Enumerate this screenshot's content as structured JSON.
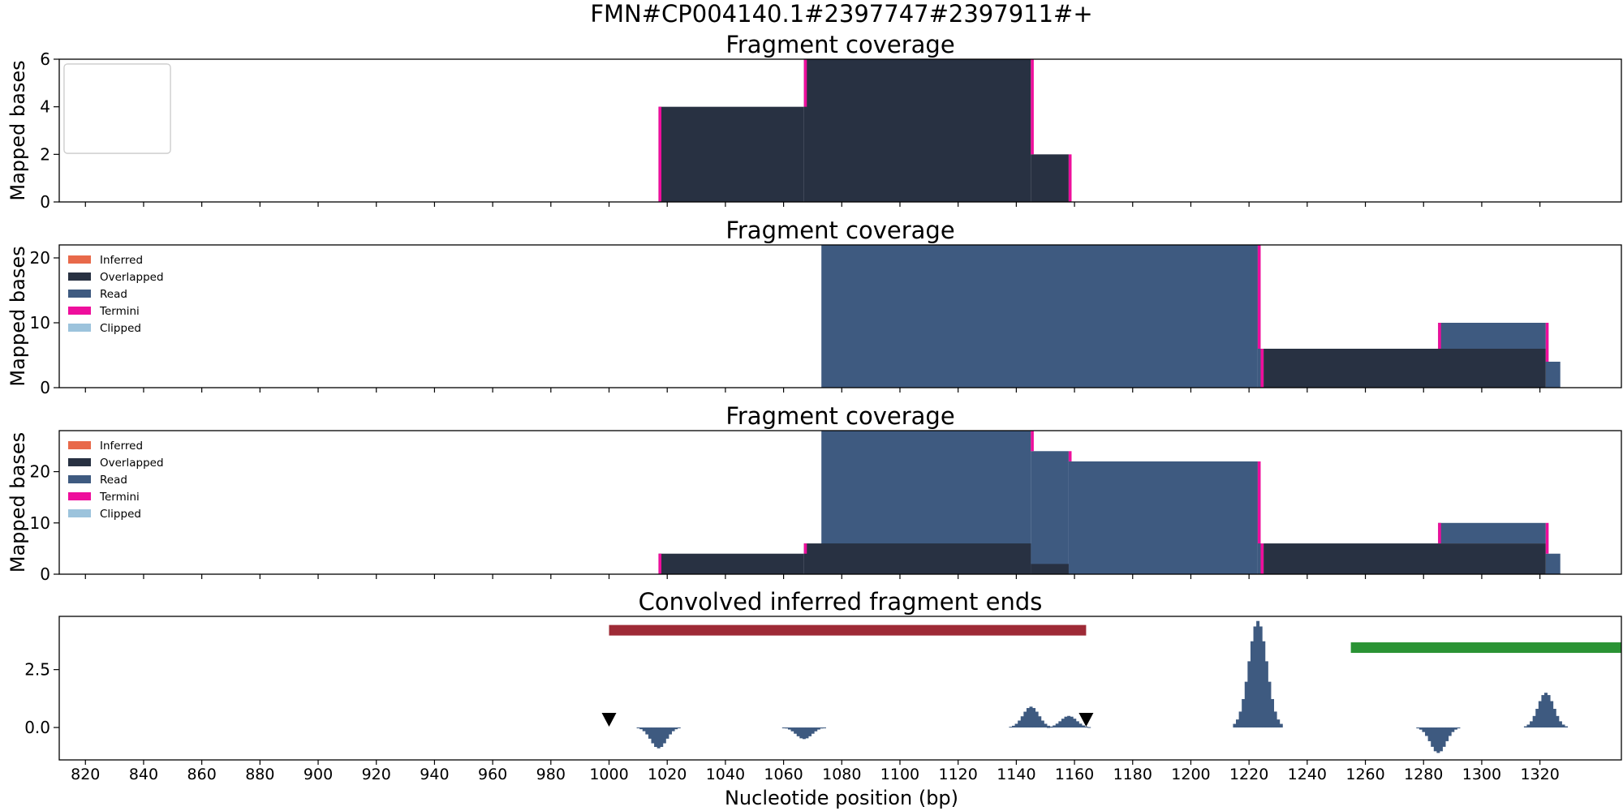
{
  "figure": {
    "suptitle": "FMN#CP004140.1#2397747#2397911#+",
    "xlabel": "Nucleotide position (bp)"
  },
  "colors": {
    "Inferred": "#e8694a",
    "Overlapped": "#283142",
    "Read": "#3e5a80",
    "Termini": "#ee0e9c",
    "Clipped": "#9cc3dc",
    "red_bar": "#9e2a36",
    "green_bar": "#2a9334",
    "marker": "#000000"
  },
  "legend": {
    "entries": [
      "Inferred",
      "Overlapped",
      "Read",
      "Termini",
      "Clipped"
    ]
  },
  "chart_data": [
    {
      "type": "area",
      "title": "Fragment coverage",
      "ylabel": "Mapped bases",
      "xlim": [
        811,
        1348
      ],
      "ylim": [
        0,
        6
      ],
      "yticks": [
        0,
        2,
        4,
        6
      ],
      "legend_position": "top-left",
      "series": [
        {
          "name": "Overlapped",
          "color_key": "Overlapped",
          "steps": [
            {
              "x0": 1017,
              "x1": 1067,
              "y0": 0,
              "y1": 4
            },
            {
              "x0": 1067,
              "x1": 1145,
              "y0": 0,
              "y1": 6
            },
            {
              "x0": 1145,
              "x1": 1158,
              "y0": 0,
              "y1": 2
            }
          ]
        },
        {
          "name": "Termini",
          "color_key": "Termini",
          "steps": [
            {
              "x0": 1017,
              "x1": 1018,
              "y0": 0,
              "y1": 4
            },
            {
              "x0": 1067,
              "x1": 1068,
              "y0": 4,
              "y1": 6
            },
            {
              "x0": 1145,
              "x1": 1146,
              "y0": 2,
              "y1": 6
            },
            {
              "x0": 1158,
              "x1": 1159,
              "y0": 0,
              "y1": 2
            }
          ]
        }
      ]
    },
    {
      "type": "area",
      "title": "Fragment coverage",
      "ylabel": "Mapped bases",
      "xlim": [
        811,
        1348
      ],
      "ylim": [
        0,
        22
      ],
      "yticks": [
        0,
        10,
        20
      ],
      "legend_position": "top-left",
      "series": [
        {
          "name": "Read",
          "color_key": "Read",
          "steps": [
            {
              "x0": 1073,
              "x1": 1223,
              "y0": 0,
              "y1": 22
            },
            {
              "x0": 1223,
              "x1": 1224,
              "y0": 0,
              "y1": 21
            },
            {
              "x0": 1285,
              "x1": 1322,
              "y0": 6,
              "y1": 10
            },
            {
              "x0": 1322,
              "x1": 1327,
              "y0": 0,
              "y1": 4
            }
          ]
        },
        {
          "name": "Overlapped",
          "color_key": "Overlapped",
          "steps": [
            {
              "x0": 1225,
              "x1": 1322,
              "y0": 0,
              "y1": 6
            }
          ]
        },
        {
          "name": "Termini",
          "color_key": "Termini",
          "steps": [
            {
              "x0": 1223,
              "x1": 1224,
              "y0": 6,
              "y1": 22
            },
            {
              "x0": 1224,
              "x1": 1225,
              "y0": 0,
              "y1": 6
            },
            {
              "x0": 1285,
              "x1": 1286,
              "y0": 6,
              "y1": 10
            },
            {
              "x0": 1322,
              "x1": 1323,
              "y0": 4,
              "y1": 10
            }
          ]
        }
      ]
    },
    {
      "type": "area",
      "title": "Fragment coverage",
      "ylabel": "Mapped bases",
      "xlim": [
        811,
        1348
      ],
      "ylim": [
        0,
        28
      ],
      "yticks": [
        0,
        10,
        20
      ],
      "legend_position": "top-left",
      "series": [
        {
          "name": "Read",
          "color_key": "Read",
          "steps": [
            {
              "x0": 1073,
              "x1": 1145,
              "y0": 0,
              "y1": 28
            },
            {
              "x0": 1145,
              "x1": 1158,
              "y0": 0,
              "y1": 24
            },
            {
              "x0": 1158,
              "x1": 1223,
              "y0": 0,
              "y1": 22
            },
            {
              "x0": 1223,
              "x1": 1224,
              "y0": 0,
              "y1": 21
            },
            {
              "x0": 1285,
              "x1": 1322,
              "y0": 6,
              "y1": 10
            },
            {
              "x0": 1322,
              "x1": 1327,
              "y0": 0,
              "y1": 4
            }
          ]
        },
        {
          "name": "Overlapped",
          "color_key": "Overlapped",
          "steps": [
            {
              "x0": 1017,
              "x1": 1067,
              "y0": 0,
              "y1": 4
            },
            {
              "x0": 1067,
              "x1": 1145,
              "y0": 0,
              "y1": 6
            },
            {
              "x0": 1145,
              "x1": 1158,
              "y0": 0,
              "y1": 2
            },
            {
              "x0": 1225,
              "x1": 1322,
              "y0": 0,
              "y1": 6
            }
          ]
        },
        {
          "name": "Termini",
          "color_key": "Termini",
          "steps": [
            {
              "x0": 1017,
              "x1": 1018,
              "y0": 0,
              "y1": 4
            },
            {
              "x0": 1067,
              "x1": 1068,
              "y0": 4,
              "y1": 6
            },
            {
              "x0": 1145,
              "x1": 1146,
              "y0": 24,
              "y1": 28
            },
            {
              "x0": 1158,
              "x1": 1159,
              "y0": 22,
              "y1": 24
            },
            {
              "x0": 1223,
              "x1": 1224,
              "y0": 6,
              "y1": 22
            },
            {
              "x0": 1224,
              "x1": 1225,
              "y0": 0,
              "y1": 6
            },
            {
              "x0": 1285,
              "x1": 1286,
              "y0": 6,
              "y1": 10
            },
            {
              "x0": 1322,
              "x1": 1323,
              "y0": 4,
              "y1": 10
            }
          ]
        }
      ]
    },
    {
      "type": "bar",
      "title": "Convolved inferred fragment ends",
      "xlabel": "Nucleotide position (bp)",
      "xlim": [
        811,
        1348
      ],
      "ylim": [
        -1.4,
        4.8
      ],
      "yticks": [
        0.0,
        2.5
      ],
      "ytick_labels": [
        "0.0",
        "2.5"
      ],
      "xticks": [
        820,
        840,
        860,
        880,
        900,
        920,
        940,
        960,
        980,
        1000,
        1020,
        1040,
        1060,
        1080,
        1100,
        1120,
        1140,
        1160,
        1180,
        1200,
        1220,
        1240,
        1260,
        1280,
        1300,
        1320
      ],
      "peaks": [
        {
          "center": 1017,
          "height": -0.9,
          "halfwidth": 7
        },
        {
          "center": 1067,
          "height": -0.5,
          "halfwidth": 7
        },
        {
          "center": 1145,
          "height": 0.9,
          "halfwidth": 7
        },
        {
          "center": 1158,
          "height": 0.5,
          "halfwidth": 7
        },
        {
          "center": 1223,
          "height": 4.6,
          "halfwidth": 8
        },
        {
          "center": 1285,
          "height": -1.1,
          "halfwidth": 7
        },
        {
          "center": 1322,
          "height": 1.5,
          "halfwidth": 7
        }
      ],
      "intervals": [
        {
          "x0": 1000,
          "x1": 1164,
          "y": 4.2,
          "color_key": "red_bar"
        },
        {
          "x0": 1255,
          "x1": 1348,
          "y": 3.45,
          "color_key": "green_bar"
        }
      ],
      "markers": [
        {
          "x": 1000,
          "y": 0.35
        },
        {
          "x": 1164,
          "y": 0.35
        }
      ]
    }
  ]
}
